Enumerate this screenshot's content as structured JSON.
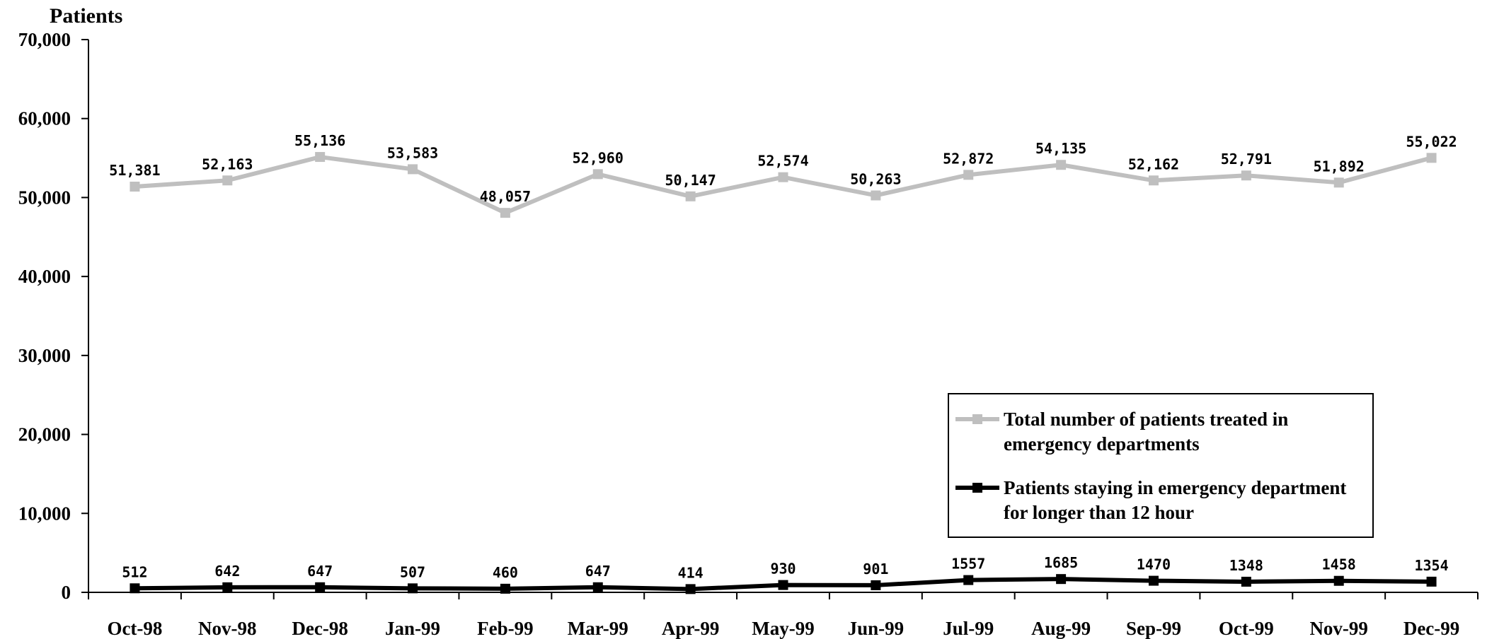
{
  "chart_data": {
    "type": "line",
    "ylabel": "Patients",
    "ylim": [
      0,
      70000
    ],
    "yticks": [
      0,
      10000,
      20000,
      30000,
      40000,
      50000,
      60000,
      70000
    ],
    "ytick_labels": [
      "0",
      "10,000",
      "20,000",
      "30,000",
      "40,000",
      "50,000",
      "60,000",
      "70,000"
    ],
    "categories": [
      "Oct-98",
      "Nov-98",
      "Dec-98",
      "Jan-99",
      "Feb-99",
      "Mar-99",
      "Apr-99",
      "May-99",
      "Jun-99",
      "Jul-99",
      "Aug-99",
      "Sep-99",
      "Oct-99",
      "Nov-99",
      "Dec-99"
    ],
    "series": [
      {
        "name": "Total number of patients treated in emergency departments",
        "name_lines": [
          "Total number of patients treated in",
          "emergency departments"
        ],
        "color": "#bfbfbf",
        "values": [
          51381,
          52163,
          55136,
          53583,
          48057,
          52960,
          50147,
          52574,
          50263,
          52872,
          54135,
          52162,
          52791,
          51892,
          55022
        ],
        "labels": [
          "51,381",
          "52,163",
          "55,136",
          "53,583",
          "48,057",
          "52,960",
          "50,147",
          "52,574",
          "50,263",
          "52,872",
          "54,135",
          "52,162",
          "52,791",
          "51,892",
          "55,022"
        ]
      },
      {
        "name": "Patients staying in emergency department for longer than 12 hour",
        "name_lines": [
          "Patients staying in emergency department",
          "for longer than 12 hour"
        ],
        "color": "#000000",
        "values": [
          512,
          642,
          647,
          507,
          460,
          647,
          414,
          930,
          901,
          1557,
          1685,
          1470,
          1348,
          1458,
          1354
        ],
        "labels": [
          "512",
          "642",
          "647",
          "507",
          "460",
          "647",
          "414",
          "930",
          "901",
          "1557",
          "1685",
          "1470",
          "1348",
          "1458",
          "1354"
        ]
      }
    ],
    "legend_position": "lower-right",
    "grid": false
  }
}
